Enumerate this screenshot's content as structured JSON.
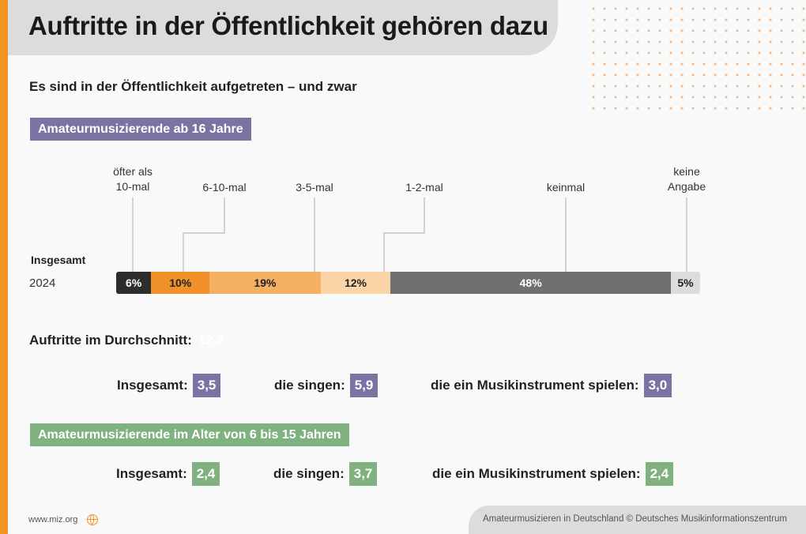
{
  "title": "Auftritte in der Öffentlichkeit gehören dazu",
  "subtitle": "Es sind in der Öffentlichkeit aufgetreten – und zwar",
  "group1": {
    "label": "Amateurmusizierende ab 16 Jahre",
    "avg_label": "Auftritte im Durchschnitt:",
    "avg_value": "12,2",
    "stats": [
      {
        "label": "Insgesamt:",
        "value": "3,5"
      },
      {
        "label": "die singen:",
        "value": "5,9"
      },
      {
        "label": "die ein Musikinstrument spielen:",
        "value": "3,0"
      }
    ]
  },
  "group2": {
    "label": "Amateurmusizierende im Alter von 6 bis 15 Jahren",
    "stats": [
      {
        "label": "Insgesamt:",
        "value": "2,4"
      },
      {
        "label": "die singen:",
        "value": "3,7"
      },
      {
        "label": "die ein Musikinstrument spielen:",
        "value": "2,4"
      }
    ]
  },
  "chart_data": {
    "type": "bar",
    "stacked": true,
    "orientation": "horizontal",
    "row_group": "Insgesamt",
    "categories": [
      "2024"
    ],
    "series": [
      {
        "name": "öfter als 10-mal",
        "values": [
          6
        ],
        "label": "6%",
        "color": "#2d2d2d",
        "text": "#fff"
      },
      {
        "name": "6-10-mal",
        "values": [
          10
        ],
        "label": "10%",
        "color": "#f0912a",
        "text": "#222"
      },
      {
        "name": "3-5-mal",
        "values": [
          19
        ],
        "label": "19%",
        "color": "#f6b064",
        "text": "#222"
      },
      {
        "name": "1-2-mal",
        "values": [
          12
        ],
        "label": "12%",
        "color": "#fbd5a8",
        "text": "#222"
      },
      {
        "name": "keinmal",
        "values": [
          48
        ],
        "label": "48%",
        "color": "#707070",
        "text": "#fff"
      },
      {
        "name": "keine Angabe",
        "values": [
          5
        ],
        "label": "5%",
        "color": "#dcdcdc",
        "text": "#222"
      }
    ],
    "xlim": [
      0,
      100
    ]
  },
  "footer": {
    "url": "www.miz.org",
    "icon": "globe-icon",
    "source": "Amateurmusizieren in Deutschland  © Deutsches Musikinformationszentrum"
  }
}
